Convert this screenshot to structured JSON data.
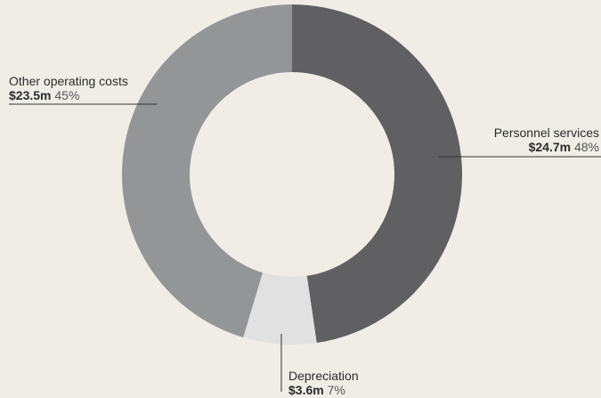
{
  "chart_data": {
    "type": "pie",
    "donut": true,
    "slices": [
      {
        "name": "Personnel services",
        "amount": "$24.7m",
        "value": 24.7,
        "percent": "48%",
        "color": "#606062"
      },
      {
        "name": "Depreciation",
        "amount": "$3.6m",
        "value": 3.6,
        "percent": "7%",
        "color": "#e1e1e2"
      },
      {
        "name": "Other operating costs",
        "amount": "$23.5m",
        "value": 23.5,
        "percent": "45%",
        "color": "#949597"
      }
    ],
    "start": "top",
    "direction": "clockwise",
    "background_color": "#f0ede7"
  }
}
